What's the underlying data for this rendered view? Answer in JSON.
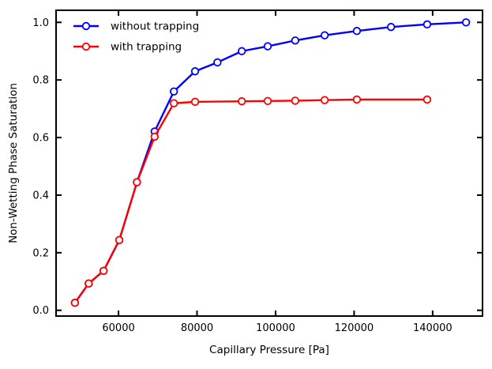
{
  "figure": {
    "background": "#ffffff",
    "frame_color": "#000000"
  },
  "chart_data": {
    "type": "line",
    "title": "",
    "xlabel": "Capillary Pressure [Pa]",
    "ylabel": "Non-Wetting Phase Saturation",
    "xlim": [
      44100,
      152700
    ],
    "ylim": [
      -0.02,
      1.042
    ],
    "x_ticks": [
      60000,
      80000,
      100000,
      120000,
      140000
    ],
    "x_tick_labels": [
      "60000",
      "80000",
      "100000",
      "120000",
      "140000"
    ],
    "y_ticks": [
      0.0,
      0.2,
      0.4,
      0.6,
      0.8,
      1.0
    ],
    "y_tick_labels": [
      "0.0",
      "0.2",
      "0.4",
      "0.6",
      "0.8",
      "1.0"
    ],
    "grid": false,
    "legend": {
      "position": "upper-left",
      "frame": false
    },
    "series": [
      {
        "name": "without trapping",
        "color": "#0000ff",
        "marker": "circle-open",
        "x": [
          48900,
          52400,
          56200,
          60200,
          64700,
          69200,
          74100,
          79500,
          85200,
          91400,
          98000,
          105000,
          112500,
          120700,
          129400,
          138600,
          148500
        ],
        "y": [
          0.026,
          0.093,
          0.137,
          0.244,
          0.445,
          0.621,
          0.76,
          0.83,
          0.861,
          0.9,
          0.917,
          0.937,
          0.955,
          0.97,
          0.984,
          0.993,
          1.0
        ]
      },
      {
        "name": "with trapping",
        "color": "#ff0000",
        "marker": "circle-open",
        "x": [
          48900,
          52400,
          56200,
          60200,
          64700,
          69200,
          74100,
          79500,
          91400,
          98000,
          105000,
          112500,
          120700,
          138600
        ],
        "y": [
          0.026,
          0.093,
          0.137,
          0.244,
          0.445,
          0.603,
          0.719,
          0.724,
          0.726,
          0.727,
          0.728,
          0.73,
          0.732,
          0.732
        ]
      }
    ]
  }
}
